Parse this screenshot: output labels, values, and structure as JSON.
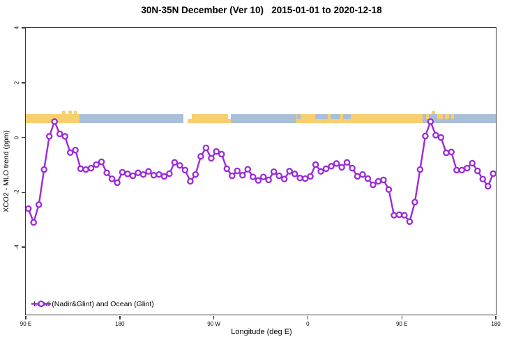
{
  "chart_data": {
    "type": "line",
    "title": "30N-35N December (Ver 10)   2015-01-01 to 2020-12-18",
    "xlabel": "Longitude (deg E)",
    "ylabel": "XCO2 - MLO trend (ppm)",
    "xlim_deg_east": [
      90,
      540
    ],
    "y_ticks": [
      {
        "value": 4,
        "label": "4"
      },
      {
        "value": 2,
        "label": "2"
      },
      {
        "value": 0,
        "label": "0"
      },
      {
        "value": -2,
        "label": "-2"
      },
      {
        "value": -4,
        "label": "-4"
      }
    ],
    "x_ticks": [
      {
        "deg": 90,
        "label": "90 E"
      },
      {
        "deg": 180,
        "label": "180"
      },
      {
        "deg": 270,
        "label": "90 W"
      },
      {
        "deg": 360,
        "label": "0"
      },
      {
        "deg": 450,
        "label": "90 E"
      },
      {
        "deg": 540,
        "label": "180"
      }
    ],
    "grid": false,
    "legend": {
      "position": "bottom-left"
    },
    "series": [
      {
        "name": "Land (Nadir&Glint) and Ocean (Glint)",
        "color": "#9A2CD8",
        "marker": "open-circle",
        "lon_start_deg_east": 92.5,
        "lon_step_deg": 5,
        "values": [
          -2.6,
          -3.1,
          -2.45,
          -1.17,
          0.04,
          0.58,
          0.13,
          0.04,
          -0.55,
          -0.46,
          -1.14,
          -1.17,
          -1.12,
          -0.99,
          -0.89,
          -1.29,
          -1.51,
          -1.65,
          -1.27,
          -1.33,
          -1.4,
          -1.29,
          -1.35,
          -1.24,
          -1.38,
          -1.35,
          -1.42,
          -1.32,
          -0.91,
          -1.02,
          -1.19,
          -1.6,
          -1.35,
          -0.69,
          -0.38,
          -0.76,
          -0.51,
          -0.61,
          -1.14,
          -1.4,
          -1.22,
          -1.38,
          -1.16,
          -1.44,
          -1.57,
          -1.44,
          -1.55,
          -1.25,
          -1.4,
          -1.52,
          -1.23,
          -1.33,
          -1.48,
          -1.5,
          -1.42,
          -0.99,
          -1.24,
          -1.14,
          -1.05,
          -0.95,
          -1.09,
          -0.91,
          -1.12,
          -1.42,
          -1.35,
          -1.5,
          -1.73,
          -1.6,
          -1.55,
          -1.9,
          -2.84,
          -2.82,
          -2.84,
          -3.07,
          -2.36,
          -1.17,
          0.05,
          0.58,
          0.08,
          0.0,
          -0.56,
          -0.53,
          -1.19,
          -1.19,
          -1.12,
          -0.94,
          -1.22,
          -1.52,
          -1.78,
          -1.32
        ]
      }
    ],
    "map_band": {
      "description": "land-ocean coastline strip across 30N-35N plotted near y = 0.7 ppm",
      "land_color": "#F9CE6E",
      "ocean_color": "#A9BFD8",
      "gap_color": "#FFFFFF",
      "segments": [
        {
          "from": 90,
          "to": 141.5,
          "type": "land"
        },
        {
          "from": 141.5,
          "to": 241,
          "type": "ocean"
        },
        {
          "from": 241,
          "to": 245,
          "type": "gap"
        },
        {
          "from": 245,
          "to": 286.5,
          "type": "land"
        },
        {
          "from": 286.5,
          "to": 349,
          "type": "ocean"
        },
        {
          "from": 349,
          "to": 470,
          "type": "land"
        },
        {
          "from": 470,
          "to": 540,
          "type": "ocean"
        }
      ],
      "details": [
        {
          "from": 125,
          "to": 128,
          "type": "land",
          "pos": "above"
        },
        {
          "from": 130.5,
          "to": 134,
          "type": "land",
          "pos": "above"
        },
        {
          "from": 136,
          "to": 139,
          "type": "land",
          "pos": "above"
        },
        {
          "from": 245,
          "to": 249,
          "type": "gap",
          "pos": "top"
        },
        {
          "from": 283.5,
          "to": 286.5,
          "type": "gap",
          "pos": "top"
        },
        {
          "from": 350,
          "to": 353,
          "type": "ocean",
          "pos": "top"
        },
        {
          "from": 367,
          "to": 379,
          "type": "ocean",
          "pos": "top"
        },
        {
          "from": 382,
          "to": 391,
          "type": "ocean",
          "pos": "top"
        },
        {
          "from": 394,
          "to": 401,
          "type": "ocean",
          "pos": "top"
        },
        {
          "from": 473,
          "to": 476,
          "type": "land",
          "pos": "top"
        },
        {
          "from": 478.5,
          "to": 482,
          "type": "land",
          "pos": "above"
        },
        {
          "from": 484,
          "to": 489,
          "type": "land",
          "pos": "top"
        },
        {
          "from": 491.5,
          "to": 495.5,
          "type": "land",
          "pos": "top"
        },
        {
          "from": 497.5,
          "to": 500,
          "type": "land",
          "pos": "top"
        }
      ]
    }
  }
}
